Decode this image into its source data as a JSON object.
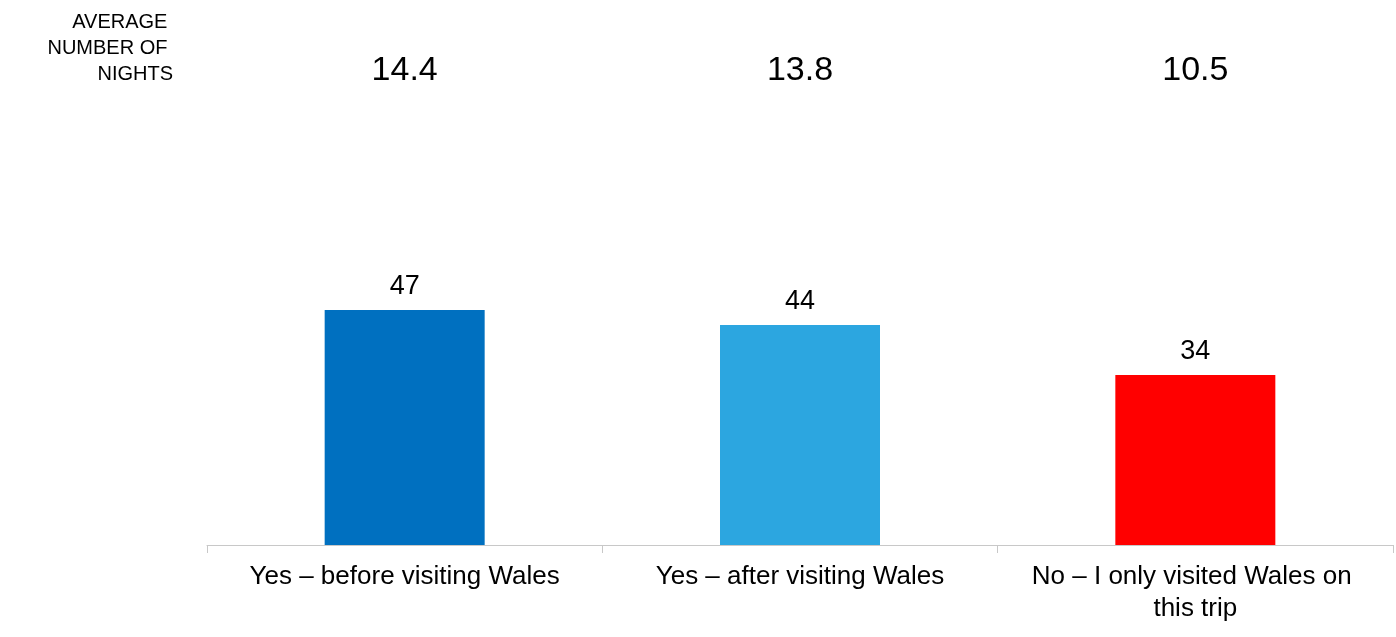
{
  "chart_data": {
    "type": "bar",
    "categories": [
      "Yes – before visiting Wales",
      "Yes – after visiting Wales",
      "No – I only visited Wales on this trip"
    ],
    "values": [
      47,
      44,
      34
    ],
    "colors": [
      "#0070c0",
      "#2ca6e0",
      "#ff0000"
    ],
    "data_labels": true,
    "annotations": [
      "AVERAGE NUMBER OF NIGHTS",
      "14.4",
      "13.8",
      "10.5"
    ]
  }
}
